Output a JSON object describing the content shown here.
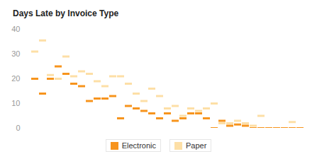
{
  "chart_data": {
    "type": "tick",
    "title": "Days Late by Invoice Type",
    "categories": [
      null,
      null,
      null,
      null,
      null,
      null,
      null,
      null,
      null,
      null,
      null,
      null,
      null,
      null,
      null,
      null,
      null,
      null,
      null,
      null,
      null,
      null,
      null,
      null,
      null,
      null,
      null,
      null,
      null,
      null,
      null,
      null,
      null,
      null,
      null
    ],
    "series": [
      {
        "name": "Electronic",
        "color": "#f7941d",
        "values": [
          20,
          14,
          20,
          25,
          22,
          18,
          17,
          11,
          12,
          12,
          13,
          4,
          9,
          8,
          7,
          6,
          4,
          6,
          3,
          4,
          6,
          6,
          4,
          0,
          3,
          1,
          1.5,
          1,
          0,
          0,
          0,
          0,
          0,
          0,
          0
        ]
      },
      {
        "name": "Paper",
        "color": "#fddfa6",
        "values": [
          31,
          35.5,
          21.5,
          20,
          29,
          21,
          23,
          22,
          19,
          17,
          21,
          21,
          18,
          14,
          11,
          16,
          13,
          8,
          9,
          5,
          8,
          7,
          8,
          10,
          2,
          2,
          3,
          2,
          1,
          5,
          0,
          0,
          0,
          2.5,
          0
        ]
      }
    ],
    "ylim": [
      0,
      40
    ],
    "yticks": [
      0,
      10,
      20,
      30,
      40
    ],
    "grid": false,
    "legend": "bottom"
  }
}
